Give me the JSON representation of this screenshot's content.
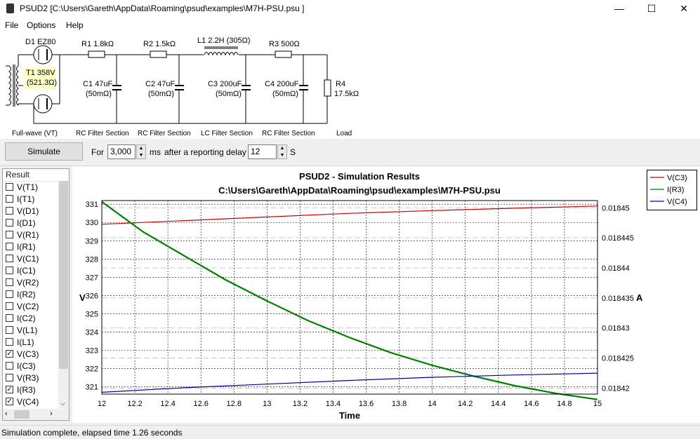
{
  "window": {
    "title": "PSUD2  [C:\\Users\\Gareth\\AppData\\Roaming\\psud\\examples\\M7H-PSU.psu ]",
    "min_glyph": "—",
    "max_glyph": "☐",
    "close_glyph": "✕"
  },
  "menu": [
    "File",
    "Options",
    "Help"
  ],
  "schematic": {
    "d1": "D1 EZ80",
    "t1_line1": "T1 358V",
    "t1_line2": "(521.3Ω)",
    "r1": "R1 1.8kΩ",
    "r2": "R2 1.5kΩ",
    "l1": "L1 2.2H (305Ω)",
    "r3": "R3 500Ω",
    "c1_line1": "C1 47uF",
    "c1_line2": "(50mΩ)",
    "c2_line1": "C2 47uF",
    "c2_line2": "(50mΩ)",
    "c3_line1": "C3 200uF",
    "c3_line2": "(50mΩ)",
    "c4_line1": "C4 200uF",
    "c4_line2": "(50mΩ)",
    "r4_line1": "R4",
    "r4_line2": "17.5kΩ",
    "sections": [
      "Full-wave (VT)",
      "RC Filter Section",
      "RC Filter Section",
      "LC Filter Section",
      "RC Filter Section",
      "Load"
    ]
  },
  "toolbar": {
    "simulate_label": "Simulate",
    "for_label": "For",
    "duration_value": "3,000",
    "ms_label": "ms",
    "delay_label": "after a reporting delay of",
    "delay_value": "12",
    "s_label": "S"
  },
  "results": {
    "header": "Result",
    "items": [
      {
        "label": "V(T1)",
        "checked": false
      },
      {
        "label": "I(T1)",
        "checked": false
      },
      {
        "label": "V(D1)",
        "checked": false
      },
      {
        "label": "I(D1)",
        "checked": false
      },
      {
        "label": "V(R1)",
        "checked": false
      },
      {
        "label": "I(R1)",
        "checked": false
      },
      {
        "label": "V(C1)",
        "checked": false
      },
      {
        "label": "I(C1)",
        "checked": false
      },
      {
        "label": "V(R2)",
        "checked": false
      },
      {
        "label": "I(R2)",
        "checked": false
      },
      {
        "label": "V(C2)",
        "checked": false
      },
      {
        "label": "I(C2)",
        "checked": false
      },
      {
        "label": "V(L1)",
        "checked": false
      },
      {
        "label": "I(L1)",
        "checked": false
      },
      {
        "label": "V(C3)",
        "checked": true
      },
      {
        "label": "I(C3)",
        "checked": false
      },
      {
        "label": "V(R3)",
        "checked": false
      },
      {
        "label": "I(R3)",
        "checked": true
      },
      {
        "label": "V(C4)",
        "checked": true
      }
    ]
  },
  "chart_data": {
    "type": "line",
    "title": "PSUD2 - Simulation Results",
    "subtitle": "C:\\Users\\Gareth\\AppData\\Roaming\\psud\\examples\\M7H-PSU.psu",
    "xlabel": "Time",
    "ylabel_left": "V",
    "ylabel_right": "A",
    "xlim": [
      12,
      15
    ],
    "ylim_left": [
      320.6,
      331.2
    ],
    "ylim_right": [
      0.018419,
      0.0184512
    ],
    "x_ticks": [
      "12",
      "12.2",
      "12.4",
      "12.6",
      "12.8",
      "13",
      "13.2",
      "13.4",
      "13.6",
      "13.8",
      "14",
      "14.2",
      "14.4",
      "14.6",
      "14.8",
      "15"
    ],
    "y_ticks_left": [
      "331",
      "330",
      "329",
      "328",
      "327",
      "326",
      "325",
      "324",
      "323",
      "322",
      "321"
    ],
    "y_ticks_right": [
      "0.01845",
      "0.018445",
      "0.01844",
      "0.018435",
      "0.01843",
      "0.018425",
      "0.01842"
    ],
    "grid": true,
    "legend_position": "top-right",
    "series": [
      {
        "name": "V(C3)",
        "axis": "left",
        "color": "#cc0000",
        "x": [
          12,
          12.5,
          13,
          13.5,
          14,
          14.5,
          15
        ],
        "y": [
          329.9,
          330.1,
          330.3,
          330.5,
          330.65,
          330.78,
          330.9
        ]
      },
      {
        "name": "I(R3)",
        "axis": "right",
        "color": "#008000",
        "x": [
          12,
          12.25,
          12.5,
          12.75,
          13,
          13.25,
          13.5,
          13.75,
          14,
          14.25,
          14.5,
          14.75,
          15
        ],
        "y": [
          0.018451,
          0.018446,
          0.018442,
          0.018438,
          0.0184345,
          0.0184312,
          0.0184284,
          0.0184259,
          0.0184238,
          0.018422,
          0.0184204,
          0.0184191,
          0.0184181
        ]
      },
      {
        "name": "V(C4)",
        "axis": "left",
        "color": "#000099",
        "x": [
          12,
          12.5,
          13,
          13.5,
          14,
          14.5,
          15
        ],
        "y": [
          320.7,
          320.95,
          321.15,
          321.35,
          321.52,
          321.65,
          321.75
        ]
      }
    ]
  },
  "status": {
    "text": "Simulation complete, elapsed time 1.26 seconds"
  }
}
